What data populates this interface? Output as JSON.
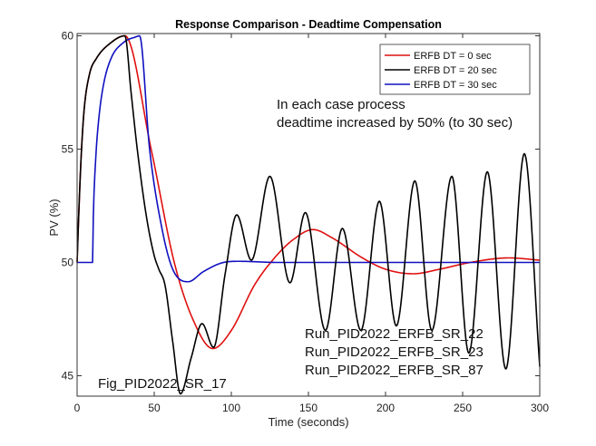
{
  "chart_data": {
    "type": "line",
    "title": "Response Comparison - Deadtime Compensation",
    "xlabel": "Time (seconds)",
    "ylabel": "PV (%)",
    "xlim": [
      0,
      300
    ],
    "ylim": [
      44.1,
      60.1
    ],
    "xticks": [
      0,
      50,
      100,
      150,
      200,
      250,
      300
    ],
    "yticks": [
      45,
      50,
      55,
      60
    ],
    "grid": false,
    "legend_position": "top-right",
    "series": [
      {
        "name": "ERFB DT = 0 sec",
        "color": "#e01010",
        "points": [
          [
            0,
            50
          ],
          [
            1,
            52
          ],
          [
            2.5,
            54.5
          ],
          [
            4.5,
            56.7
          ],
          [
            8,
            58.3
          ],
          [
            12.5,
            59
          ],
          [
            22,
            59.7
          ],
          [
            31,
            60
          ],
          [
            48,
            55
          ],
          [
            63,
            50
          ],
          [
            75,
            47.5
          ],
          [
            88,
            46.2
          ],
          [
            100,
            47
          ],
          [
            115,
            49
          ],
          [
            128,
            50.2
          ],
          [
            140,
            51
          ],
          [
            153,
            51.45
          ],
          [
            165,
            51.1
          ],
          [
            185,
            50.2
          ],
          [
            200,
            49.7
          ],
          [
            218,
            49.5
          ],
          [
            235,
            49.7
          ],
          [
            255,
            50
          ],
          [
            280,
            50.2
          ],
          [
            300,
            50.1
          ]
        ]
      },
      {
        "name": "ERFB DT = 20 sec",
        "color": "#000000",
        "points": [
          [
            0,
            50
          ],
          [
            1,
            52
          ],
          [
            2.5,
            54.5
          ],
          [
            4.5,
            56.7
          ],
          [
            8,
            58.3
          ],
          [
            12.5,
            59
          ],
          [
            22,
            59.7
          ],
          [
            31,
            60
          ],
          [
            35,
            57.5
          ],
          [
            39,
            55
          ],
          [
            45,
            52
          ],
          [
            50,
            50.3
          ],
          [
            53,
            49.7
          ],
          [
            57,
            49
          ],
          [
            62,
            46.5
          ],
          [
            67,
            44.2
          ],
          [
            74,
            45.8
          ],
          [
            81,
            47.3
          ],
          [
            88.5,
            46.25
          ],
          [
            96,
            49.5
          ],
          [
            103.5,
            52.1
          ],
          [
            113,
            50.1
          ],
          [
            125,
            53.8
          ],
          [
            138,
            49.1
          ],
          [
            148,
            52.2
          ],
          [
            161,
            47
          ],
          [
            172,
            51.5
          ],
          [
            184,
            47
          ],
          [
            196,
            52.7
          ],
          [
            207,
            47.2
          ],
          [
            219,
            53.6
          ],
          [
            230,
            47
          ],
          [
            243,
            53.8
          ],
          [
            254,
            46
          ],
          [
            266,
            54
          ],
          [
            278,
            45.3
          ],
          [
            290,
            54.8
          ],
          [
            300,
            45.4
          ]
        ]
      },
      {
        "name": "ERFB DT = 30 sec",
        "color": "#1010c0",
        "points": [
          [
            0,
            50
          ],
          [
            10,
            50
          ],
          [
            10.5,
            52
          ],
          [
            12,
            54.5
          ],
          [
            14,
            56.3
          ],
          [
            17,
            57.8
          ],
          [
            22,
            59
          ],
          [
            30,
            59.7
          ],
          [
            38,
            59.95
          ],
          [
            40.5,
            60
          ],
          [
            47,
            55
          ],
          [
            55,
            51.5
          ],
          [
            62,
            49.7
          ],
          [
            72,
            49.15
          ],
          [
            82,
            49.6
          ],
          [
            95,
            50
          ],
          [
            105,
            50.05
          ],
          [
            130,
            50
          ],
          [
            300,
            50
          ]
        ]
      }
    ],
    "annotations": {
      "note_line1": "In each case process",
      "note_line2": "deadtime increased by 50% (to 30 sec)",
      "runs": [
        "Run_PID2022_ERFB_SR_22",
        "Run_PID2022_ERFB_SR_23",
        "Run_PID2022_ERFB_SR_87"
      ],
      "figure_id": "Fig_PID2022_SR_17"
    }
  }
}
